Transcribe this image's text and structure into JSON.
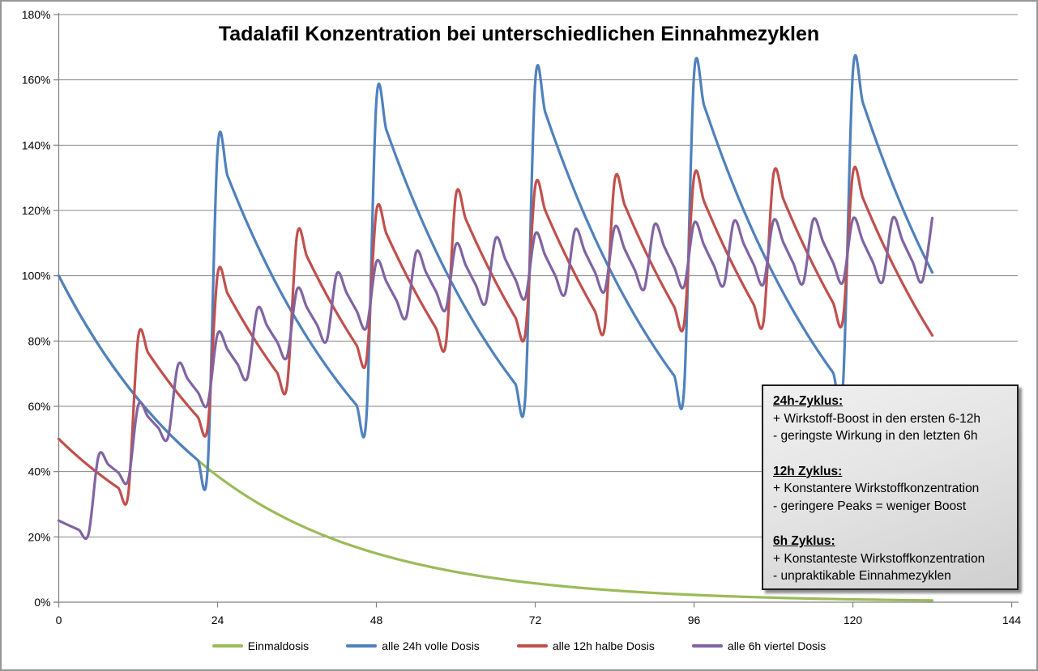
{
  "chart_data": {
    "type": "line",
    "title": "Tadalafil Konzentration bei unterschiedlichen Einnahmezyklen",
    "xlabel": "",
    "ylabel": "",
    "x_axis": {
      "unit": "h",
      "range": [
        0,
        144
      ],
      "tick_labels": [
        "0",
        "24",
        "48",
        "72",
        "96",
        "120",
        "144"
      ],
      "tick_values": [
        0,
        24,
        48,
        72,
        96,
        120,
        144
      ]
    },
    "y_axis": {
      "unit": "%",
      "range_percent": [
        0,
        180
      ],
      "tick_step": 20,
      "tick_labels": [
        "0%",
        "20%",
        "40%",
        "60%",
        "80%",
        "100%",
        "120%",
        "140%",
        "160%",
        "180%"
      ],
      "grid": "horizontal"
    },
    "legend_position": "bottom",
    "model": {
      "half_life_h": 17.5,
      "sample_step_h": 1.5,
      "end_h": 132,
      "note": "concentration = sum of doses decaying exponentially; a new dose adds instantly at dose time; curves drawn smoothed"
    },
    "series": [
      {
        "name": "Einmaldosis",
        "color": "#9BBB59",
        "dose_percent": 100,
        "interval_h": null,
        "num_doses": 1,
        "values_at_24h_marks_percent": [
          100,
          38.6,
          14.9,
          5.8,
          2.2,
          0.9,
          0.5
        ]
      },
      {
        "name": "alle 24h volle Dosis",
        "color": "#4F81BD",
        "dose_percent": 100,
        "interval_h": 24,
        "num_doses": 6,
        "peak_levels_percent": [
          100,
          138.6,
          153.6,
          159.4,
          161.6,
          162.5
        ],
        "end_level_percent": 101
      },
      {
        "name": "alle 12h halbe Dosis",
        "color": "#C0504D",
        "dose_percent": 50,
        "interval_h": 12,
        "num_doses": 11,
        "peak_levels_percent": [
          50,
          81.1,
          100.4,
          112.4,
          119.9,
          124.5,
          127.4,
          129.2,
          130.3,
          131.0,
          131.5
        ],
        "end_level_percent": 81.7
      },
      {
        "name": "alle 6h viertel Dosis",
        "color": "#8064A2",
        "dose_percent": 25,
        "interval_h": 6,
        "num_doses": 23,
        "peak_levels_percent": [
          25,
          44.7,
          60.3,
          72.5,
          82.2,
          89.8,
          95.8,
          100.5,
          104.3,
          107.2,
          109.6,
          111.4,
          112.8,
          114.0,
          114.9,
          115.6,
          116.1,
          116.6,
          116.9,
          117.2,
          117.4,
          117.6,
          117.7
        ],
        "end_level_percent": 117.7
      }
    ]
  },
  "annotation_box": {
    "sections": [
      {
        "heading": "24h-Zyklus:",
        "lines": [
          "+ Wirkstoff-Boost in den ersten 6-12h",
          "- geringste  Wirkung  in den letzten 6h"
        ]
      },
      {
        "heading": "12h Zyklus:",
        "lines": [
          "+ Konstantere  Wirkstoffkonzentration",
          "- geringere  Peaks  =  weniger  Boost"
        ]
      },
      {
        "heading": "6h Zyklus:",
        "lines": [
          "+ Konstanteste  Wirkstoffkonzentration",
          "- unpraktikable  Einnahmezyklen"
        ]
      }
    ]
  },
  "legend": {
    "items": [
      {
        "label": "Einmaldosis",
        "color": "#9BBB59"
      },
      {
        "label": "alle 24h volle Dosis",
        "color": "#4F81BD"
      },
      {
        "label": "alle 12h halbe Dosis",
        "color": "#C0504D"
      },
      {
        "label": "alle 6h viertel Dosis",
        "color": "#8064A2"
      }
    ]
  },
  "style": {
    "gridline_color": "#878787",
    "axis_color": "#808080",
    "text_color": "#000000",
    "frame_color": "#969696"
  }
}
